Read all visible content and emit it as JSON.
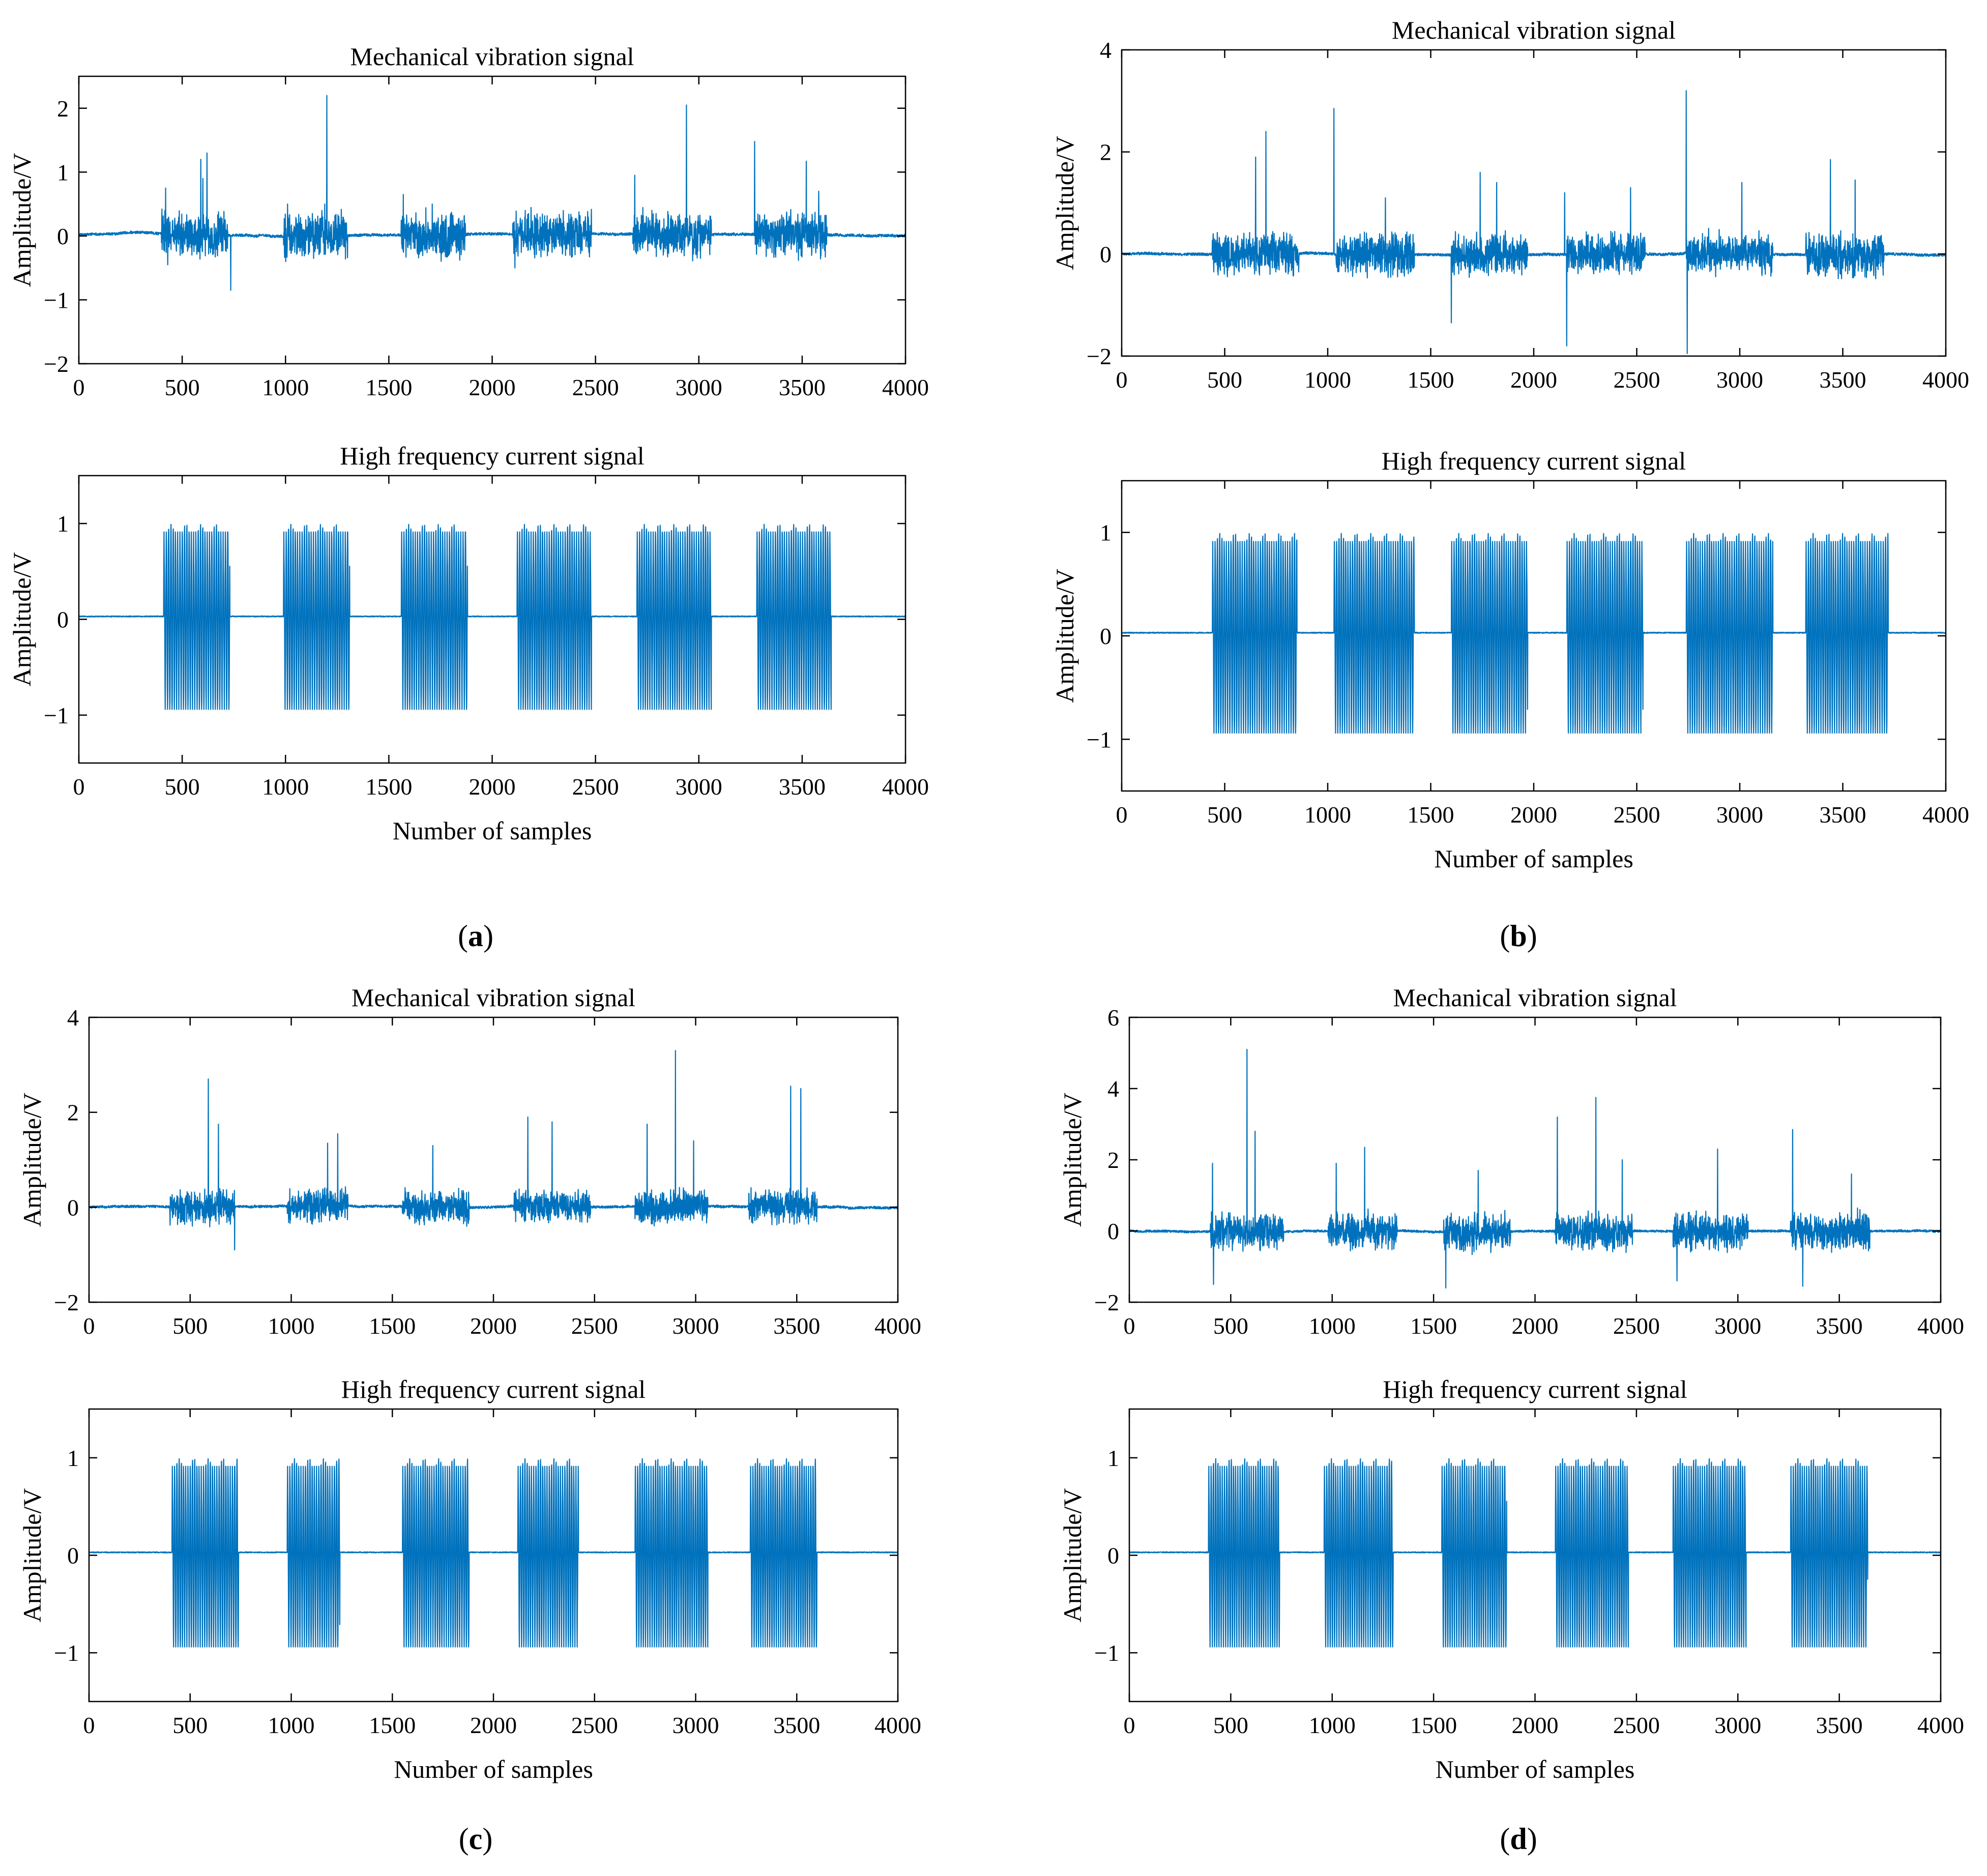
{
  "figure": {
    "panel_labels": [
      "a",
      "b",
      "c",
      "d"
    ],
    "line_color": "#0072BD",
    "axis_color": "#000000"
  },
  "chart_data": [
    {
      "panel": "a",
      "type": "line",
      "kind": "vibration",
      "title": "Mechanical vibration signal",
      "xlabel": "",
      "ylabel": "Amplitude/V",
      "xlim": [
        0,
        4000
      ],
      "ylim": [
        -2,
        2.5
      ],
      "xticks": [
        0,
        500,
        1000,
        1500,
        2000,
        2500,
        3000,
        3500,
        4000
      ],
      "yticks": [
        -2,
        -1,
        0,
        1,
        2
      ],
      "grid": false,
      "bursts": [
        [
          400,
          720
        ],
        [
          990,
          1300
        ],
        [
          1560,
          1870
        ],
        [
          2100,
          2480
        ],
        [
          2680,
          3060
        ],
        [
          3270,
          3620
        ]
      ],
      "spikes": [
        {
          "x": 420,
          "y": 0.75
        },
        {
          "x": 430,
          "y": -0.45
        },
        {
          "x": 590,
          "y": 1.2
        },
        {
          "x": 600,
          "y": 0.9
        },
        {
          "x": 620,
          "y": 1.3
        },
        {
          "x": 735,
          "y": -0.85
        },
        {
          "x": 1010,
          "y": 0.5
        },
        {
          "x": 1190,
          "y": 0.5
        },
        {
          "x": 1200,
          "y": 2.2
        },
        {
          "x": 1570,
          "y": 0.65
        },
        {
          "x": 1710,
          "y": 0.5
        },
        {
          "x": 2110,
          "y": -0.5
        },
        {
          "x": 2160,
          "y": 0.4
        },
        {
          "x": 2690,
          "y": 0.95
        },
        {
          "x": 2940,
          "y": 2.05
        },
        {
          "x": 3270,
          "y": 1.48
        },
        {
          "x": 3520,
          "y": 1.17
        },
        {
          "x": 3580,
          "y": 0.7
        }
      ],
      "baseline": 0.02,
      "noise": 0.04,
      "burst_amp": 0.3
    },
    {
      "panel": "a",
      "type": "line",
      "kind": "current",
      "title": "High frequency current signal",
      "xlabel": "Number of samples",
      "ylabel": "Amplitude/V",
      "xlim": [
        0,
        4000
      ],
      "ylim": [
        -1.5,
        1.5
      ],
      "xticks": [
        0,
        500,
        1000,
        1500,
        2000,
        2500,
        3000,
        3500,
        4000
      ],
      "yticks": [
        -1,
        0,
        1
      ],
      "grid": false,
      "bursts": [
        [
          410,
          730
        ],
        [
          990,
          1310
        ],
        [
          1560,
          1880
        ],
        [
          2120,
          2480
        ],
        [
          2700,
          3060
        ],
        [
          3280,
          3640
        ]
      ],
      "baseline": 0.03,
      "high": 1.0,
      "low": -0.95
    },
    {
      "panel": "b",
      "type": "line",
      "kind": "vibration",
      "title": "Mechanical vibration signal",
      "xlabel": "",
      "ylabel": "Amplitude/V",
      "xlim": [
        0,
        4000
      ],
      "ylim": [
        -2,
        4
      ],
      "xticks": [
        0,
        500,
        1000,
        1500,
        2000,
        2500,
        3000,
        3500,
        4000
      ],
      "yticks": [
        -2,
        0,
        2,
        4
      ],
      "grid": false,
      "bursts": [
        [
          440,
          860
        ],
        [
          1040,
          1420
        ],
        [
          1600,
          1970
        ],
        [
          2160,
          2540
        ],
        [
          2740,
          3160
        ],
        [
          3320,
          3700
        ]
      ],
      "spikes": [
        {
          "x": 650,
          "y": 1.9
        },
        {
          "x": 700,
          "y": 2.4
        },
        {
          "x": 1030,
          "y": 2.85
        },
        {
          "x": 1280,
          "y": 1.1
        },
        {
          "x": 1600,
          "y": -1.35
        },
        {
          "x": 1740,
          "y": 1.6
        },
        {
          "x": 1820,
          "y": 1.4
        },
        {
          "x": 2150,
          "y": 1.2
        },
        {
          "x": 2160,
          "y": -1.8
        },
        {
          "x": 2470,
          "y": 1.3
        },
        {
          "x": 2740,
          "y": 3.2
        },
        {
          "x": 2745,
          "y": -1.95
        },
        {
          "x": 3010,
          "y": 1.4
        },
        {
          "x": 3440,
          "y": 1.85
        },
        {
          "x": 3560,
          "y": 1.45
        }
      ],
      "baseline": 0.0,
      "noise": 0.05,
      "burst_amp": 0.35
    },
    {
      "panel": "b",
      "type": "line",
      "kind": "current",
      "title": "High frequency current signal",
      "xlabel": "Number of samples",
      "ylabel": "Amplitude/V",
      "xlim": [
        0,
        4000
      ],
      "ylim": [
        -1.5,
        1.5
      ],
      "xticks": [
        0,
        500,
        1000,
        1500,
        2000,
        2500,
        3000,
        3500,
        4000
      ],
      "yticks": [
        -1,
        0,
        1
      ],
      "grid": false,
      "bursts": [
        [
          440,
          850
        ],
        [
          1030,
          1420
        ],
        [
          1600,
          1970
        ],
        [
          2160,
          2530
        ],
        [
          2740,
          3160
        ],
        [
          3320,
          3720
        ]
      ],
      "baseline": 0.03,
      "high": 1.0,
      "low": -0.95
    },
    {
      "panel": "c",
      "type": "line",
      "kind": "vibration",
      "title": "Mechanical vibration signal",
      "xlabel": "",
      "ylabel": "Amplitude/V",
      "xlim": [
        0,
        4000
      ],
      "ylim": [
        -2,
        4
      ],
      "xticks": [
        0,
        500,
        1000,
        1500,
        2000,
        2500,
        3000,
        3500,
        4000
      ],
      "yticks": [
        -2,
        0,
        2,
        4
      ],
      "grid": false,
      "bursts": [
        [
          400,
          720
        ],
        [
          980,
          1280
        ],
        [
          1550,
          1880
        ],
        [
          2100,
          2480
        ],
        [
          2700,
          3060
        ],
        [
          3260,
          3600
        ]
      ],
      "spikes": [
        {
          "x": 590,
          "y": 2.7
        },
        {
          "x": 640,
          "y": 1.75
        },
        {
          "x": 720,
          "y": -0.9
        },
        {
          "x": 1180,
          "y": 1.35
        },
        {
          "x": 1230,
          "y": 1.55
        },
        {
          "x": 1700,
          "y": 1.3
        },
        {
          "x": 2170,
          "y": 1.9
        },
        {
          "x": 2290,
          "y": 1.8
        },
        {
          "x": 2760,
          "y": 1.75
        },
        {
          "x": 2900,
          "y": 3.3
        },
        {
          "x": 2990,
          "y": 1.4
        },
        {
          "x": 3470,
          "y": 2.55
        },
        {
          "x": 3520,
          "y": 2.5
        }
      ],
      "baseline": 0.0,
      "noise": 0.05,
      "burst_amp": 0.3
    },
    {
      "panel": "c",
      "type": "line",
      "kind": "current",
      "title": "High frequency current signal",
      "xlabel": "Number of samples",
      "ylabel": "Amplitude/V",
      "xlim": [
        0,
        4000
      ],
      "ylim": [
        -1.5,
        1.5
      ],
      "xticks": [
        0,
        500,
        1000,
        1500,
        2000,
        2500,
        3000,
        3500,
        4000
      ],
      "yticks": [
        -1,
        0,
        1
      ],
      "grid": false,
      "bursts": [
        [
          410,
          740
        ],
        [
          980,
          1240
        ],
        [
          1550,
          1880
        ],
        [
          2120,
          2420
        ],
        [
          2700,
          3060
        ],
        [
          3270,
          3600
        ]
      ],
      "baseline": 0.03,
      "high": 1.0,
      "low": -0.95
    },
    {
      "panel": "d",
      "type": "line",
      "kind": "vibration",
      "title": "Mechanical vibration signal",
      "xlabel": "",
      "ylabel": "Amplitude/V",
      "xlim": [
        0,
        4000
      ],
      "ylim": [
        -2,
        6
      ],
      "xticks": [
        0,
        500,
        1000,
        1500,
        2000,
        2500,
        3000,
        3500,
        4000
      ],
      "yticks": [
        -2,
        0,
        2,
        4,
        6
      ],
      "grid": false,
      "bursts": [
        [
          400,
          760
        ],
        [
          980,
          1320
        ],
        [
          1550,
          1880
        ],
        [
          2100,
          2480
        ],
        [
          2680,
          3050
        ],
        [
          3260,
          3650
        ]
      ],
      "spikes": [
        {
          "x": 410,
          "y": 1.9
        },
        {
          "x": 415,
          "y": -1.5
        },
        {
          "x": 580,
          "y": 5.1
        },
        {
          "x": 620,
          "y": 2.8
        },
        {
          "x": 1020,
          "y": 1.9
        },
        {
          "x": 1160,
          "y": 2.35
        },
        {
          "x": 1560,
          "y": -1.6
        },
        {
          "x": 1720,
          "y": 1.7
        },
        {
          "x": 2110,
          "y": 3.2
        },
        {
          "x": 2300,
          "y": 3.75
        },
        {
          "x": 2430,
          "y": 2.0
        },
        {
          "x": 2700,
          "y": -1.4
        },
        {
          "x": 2900,
          "y": 2.3
        },
        {
          "x": 3270,
          "y": 2.85
        },
        {
          "x": 3320,
          "y": -1.55
        },
        {
          "x": 3560,
          "y": 1.6
        }
      ],
      "baseline": 0.0,
      "noise": 0.06,
      "burst_amp": 0.45
    },
    {
      "panel": "d",
      "type": "line",
      "kind": "current",
      "title": "High frequency current signal",
      "xlabel": "Number of samples",
      "ylabel": "Amplitude/V",
      "xlim": [
        0,
        4000
      ],
      "ylim": [
        -1.5,
        1.5
      ],
      "xticks": [
        0,
        500,
        1000,
        1500,
        2000,
        2500,
        3000,
        3500,
        4000
      ],
      "yticks": [
        -1,
        0,
        1
      ],
      "grid": false,
      "bursts": [
        [
          390,
          740
        ],
        [
          960,
          1300
        ],
        [
          1540,
          1860
        ],
        [
          2100,
          2460
        ],
        [
          2680,
          3040
        ],
        [
          3260,
          3640
        ]
      ],
      "baseline": 0.03,
      "high": 1.0,
      "low": -0.95
    }
  ]
}
